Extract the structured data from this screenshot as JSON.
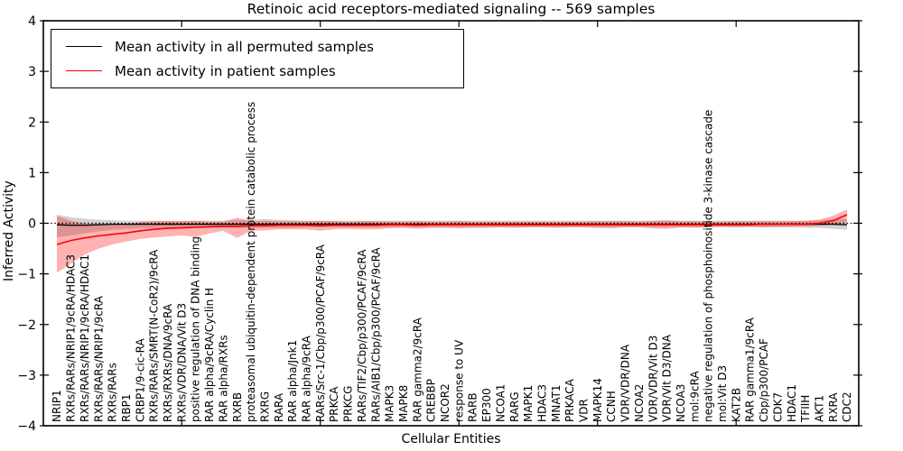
{
  "chart_data": {
    "type": "line",
    "title": "Retinoic acid receptors-mediated signaling -- 569 samples",
    "xlabel": "Cellular Entities",
    "ylabel": "Inferred Activity",
    "ylim": [
      -4,
      4
    ],
    "yticks": [
      4,
      3,
      2,
      1,
      0,
      -1,
      -2,
      -3,
      -4
    ],
    "grid": false,
    "legend_position": "upper left",
    "legend": [
      {
        "label": "Mean activity in all permuted samples",
        "color": "#000000"
      },
      {
        "label": "Mean activity in patient samples",
        "color": "#ff0000"
      }
    ],
    "zero_line": {
      "style": "dotted",
      "color": "#000000",
      "y": 0
    },
    "top_axis_tick_indices": [
      9,
      19,
      29,
      39,
      49
    ],
    "categories": [
      "NRIP1",
      "RXRs/RARs/NRIP1/9cRA/HDAC3",
      "RXRs/RARs/NRIP1/9cRA/HDAC1",
      "RXRs/RARs/NRIP1/9cRA",
      "RXRs/RARs",
      "RBP1",
      "CRBP1/9-cic-RA",
      "RXRs/RARs/SMRT(N-CoR2)/9cRA",
      "RXRs/RXRs/DNA/9cRA",
      "RXRs/VDR/DNA/Vit D3",
      "positive regulation of DNA binding",
      "RAR alpha/9cRA/Cyclin H",
      "RAR alpha/RXRs",
      "RXRB",
      "proteasomal ubiquitin-dependent protein catabolic process",
      "RXRG",
      "RARA",
      "RAR alpha/Jnk1",
      "RAR alpha/9cRA",
      "RARs/Src-1/Cbp/p300/PCAF/9cRA",
      "PRKCA",
      "PRKCG",
      "RARs/TIF2/Cbp/p300/PCAF/9cRA",
      "RARs/AIB1/Cbp/p300/PCAF/9cRA",
      "MAPK3",
      "MAPK8",
      "RAR gamma2/9cRA",
      "CREBBP",
      "NCOR2",
      "response to UV",
      "RARB",
      "EP300",
      "NCOA1",
      "RARG",
      "MAPK1",
      "HDAC3",
      "MNAT1",
      "PRKACA",
      "VDR",
      "MAPK14",
      "CCNH",
      "VDR/VDR/DNA",
      "NCOA2",
      "VDR/VDR/Vit D3",
      "VDR/Vit D3/DNA",
      "NCOA3",
      "mol:9cRA",
      "negative regulation of phosphoinositide 3-kinase cascade",
      "mol:Vit D3",
      "KAT2B",
      "RAR gamma1/9cRA",
      "Cbp/p300/PCAF",
      "CDK7",
      "HDAC1",
      "TFIIH",
      "AKT1",
      "RXRA",
      "CDC2"
    ],
    "series": [
      {
        "name": "Mean activity in all permuted samples",
        "color": "#000000",
        "band_color": "#808080",
        "band_alpha": 0.35,
        "values": [
          -0.03,
          -0.04,
          -0.04,
          -0.03,
          -0.02,
          -0.02,
          -0.02,
          -0.02,
          -0.02,
          -0.02,
          -0.02,
          -0.02,
          -0.02,
          -0.02,
          -0.02,
          -0.02,
          -0.02,
          -0.02,
          -0.02,
          -0.02,
          -0.02,
          -0.02,
          -0.02,
          -0.02,
          -0.02,
          -0.02,
          -0.02,
          -0.02,
          -0.02,
          -0.02,
          -0.02,
          -0.02,
          -0.02,
          -0.02,
          -0.02,
          -0.02,
          -0.02,
          -0.02,
          -0.02,
          -0.02,
          -0.02,
          -0.02,
          -0.02,
          -0.02,
          -0.02,
          -0.02,
          -0.02,
          -0.02,
          -0.02,
          -0.02,
          -0.02,
          -0.02,
          -0.02,
          -0.02,
          -0.02,
          -0.02,
          -0.02,
          -0.03
        ],
        "band_upper": [
          0.17,
          0.12,
          0.09,
          0.07,
          0.06,
          0.05,
          0.05,
          0.05,
          0.05,
          0.05,
          0.05,
          0.05,
          0.05,
          0.06,
          0.07,
          0.08,
          0.07,
          0.06,
          0.05,
          0.05,
          0.05,
          0.05,
          0.05,
          0.05,
          0.05,
          0.05,
          0.05,
          0.05,
          0.05,
          0.05,
          0.05,
          0.05,
          0.05,
          0.05,
          0.05,
          0.05,
          0.05,
          0.05,
          0.05,
          0.05,
          0.05,
          0.05,
          0.05,
          0.05,
          0.05,
          0.05,
          0.05,
          0.05,
          0.05,
          0.05,
          0.05,
          0.05,
          0.05,
          0.05,
          0.05,
          0.06,
          0.08,
          0.08
        ],
        "band_lower": [
          -0.28,
          -0.24,
          -0.2,
          -0.16,
          -0.13,
          -0.11,
          -0.1,
          -0.09,
          -0.09,
          -0.09,
          -0.09,
          -0.09,
          -0.09,
          -0.09,
          -0.09,
          -0.09,
          -0.09,
          -0.09,
          -0.08,
          -0.08,
          -0.08,
          -0.08,
          -0.08,
          -0.08,
          -0.08,
          -0.08,
          -0.08,
          -0.08,
          -0.08,
          -0.08,
          -0.08,
          -0.08,
          -0.08,
          -0.08,
          -0.08,
          -0.08,
          -0.08,
          -0.08,
          -0.08,
          -0.08,
          -0.08,
          -0.08,
          -0.08,
          -0.08,
          -0.08,
          -0.08,
          -0.08,
          -0.08,
          -0.08,
          -0.08,
          -0.08,
          -0.08,
          -0.08,
          -0.08,
          -0.09,
          -0.09,
          -0.11,
          -0.13
        ]
      },
      {
        "name": "Mean activity in patient samples",
        "color": "#ff0000",
        "band_color": "#ff0000",
        "band_alpha": 0.3,
        "values": [
          -0.42,
          -0.34,
          -0.29,
          -0.25,
          -0.22,
          -0.19,
          -0.15,
          -0.12,
          -0.1,
          -0.09,
          -0.08,
          -0.07,
          -0.06,
          -0.06,
          -0.05,
          -0.05,
          -0.04,
          -0.04,
          -0.04,
          -0.05,
          -0.04,
          -0.04,
          -0.04,
          -0.04,
          -0.03,
          -0.03,
          -0.04,
          -0.03,
          -0.03,
          -0.03,
          -0.03,
          -0.03,
          -0.03,
          -0.03,
          -0.03,
          -0.03,
          -0.03,
          -0.03,
          -0.03,
          -0.03,
          -0.03,
          -0.03,
          -0.03,
          -0.03,
          -0.03,
          -0.03,
          -0.03,
          -0.03,
          -0.03,
          -0.03,
          -0.03,
          -0.02,
          -0.02,
          -0.02,
          -0.02,
          0.0,
          0.05,
          0.17
        ],
        "band_upper": [
          0.15,
          0.05,
          0.0,
          -0.02,
          -0.03,
          -0.02,
          0.02,
          0.04,
          0.04,
          0.04,
          0.05,
          0.03,
          0.03,
          0.11,
          0.04,
          0.05,
          0.04,
          0.04,
          0.04,
          0.05,
          0.04,
          0.03,
          0.04,
          0.04,
          0.03,
          0.03,
          0.04,
          0.03,
          0.03,
          0.04,
          0.03,
          0.03,
          0.03,
          0.03,
          0.03,
          0.03,
          0.03,
          0.03,
          0.03,
          0.04,
          0.04,
          0.04,
          0.03,
          0.05,
          0.06,
          0.04,
          0.04,
          0.03,
          0.03,
          0.04,
          0.04,
          0.04,
          0.04,
          0.04,
          0.05,
          0.07,
          0.15,
          0.27
        ],
        "band_lower": [
          -0.98,
          -0.8,
          -0.62,
          -0.5,
          -0.42,
          -0.36,
          -0.31,
          -0.28,
          -0.26,
          -0.24,
          -0.27,
          -0.2,
          -0.15,
          -0.29,
          -0.15,
          -0.14,
          -0.12,
          -0.12,
          -0.12,
          -0.15,
          -0.12,
          -0.11,
          -0.12,
          -0.12,
          -0.1,
          -0.09,
          -0.11,
          -0.09,
          -0.09,
          -0.1,
          -0.09,
          -0.09,
          -0.08,
          -0.09,
          -0.08,
          -0.08,
          -0.09,
          -0.08,
          -0.08,
          -0.09,
          -0.1,
          -0.08,
          -0.08,
          -0.1,
          -0.11,
          -0.08,
          -0.09,
          -0.08,
          -0.07,
          -0.08,
          -0.07,
          -0.08,
          -0.07,
          -0.07,
          -0.06,
          -0.05,
          -0.02,
          0.02
        ]
      }
    ]
  }
}
